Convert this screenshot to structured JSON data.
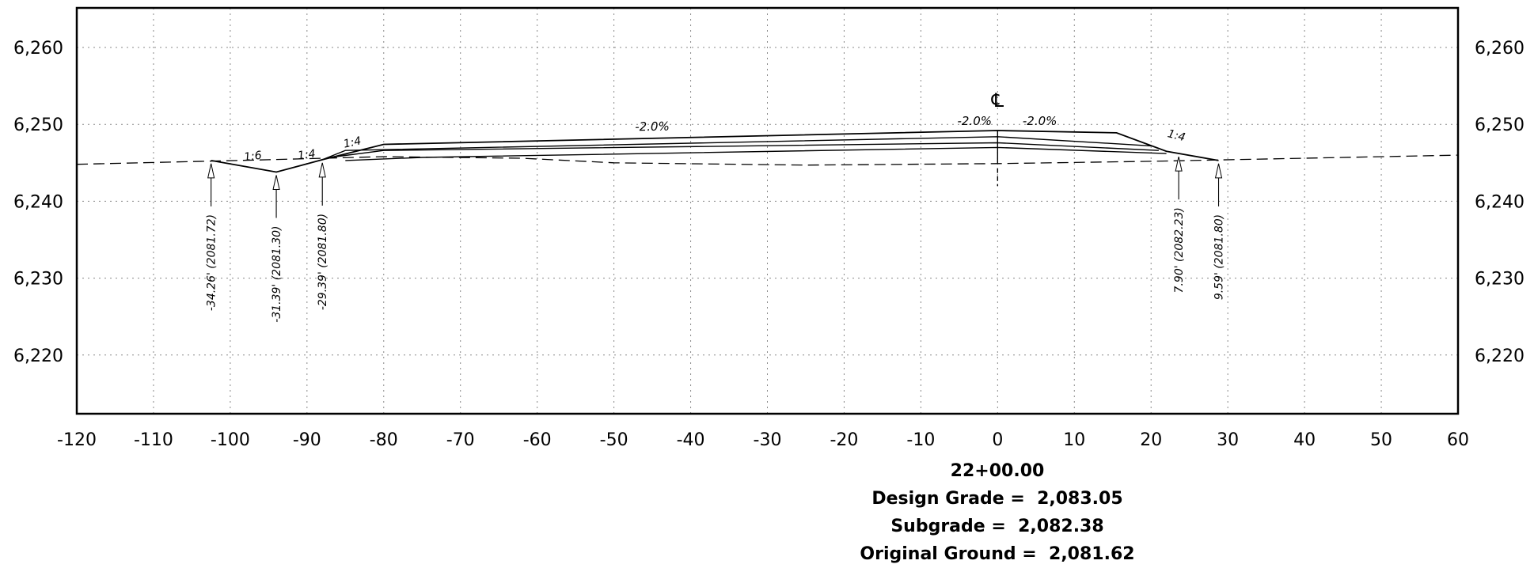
{
  "chart_data": {
    "type": "cross-section",
    "station": "22+00.00",
    "xlim": [
      -120,
      60
    ],
    "ylim": [
      6213,
      6266
    ],
    "x_ticks": [
      -120,
      -110,
      -100,
      -90,
      -80,
      -70,
      -60,
      -50,
      -40,
      -30,
      -20,
      -10,
      0,
      10,
      20,
      30,
      40,
      50,
      60
    ],
    "x_tick_labels": [
      "-120",
      "-110",
      "-100",
      "-90",
      "-80",
      "-70",
      "-60",
      "-50",
      "-40",
      "-30",
      "-20",
      "-10",
      "0",
      "10",
      "20",
      "30",
      "40",
      "50",
      "60"
    ],
    "y_ticks": [
      6220,
      6230,
      6240,
      6250,
      6260
    ],
    "y_tick_labels": [
      "6,220",
      "6,230",
      "6,240",
      "6,250",
      "6,260"
    ],
    "grid": true,
    "centerline_symbol": "℄",
    "original_ground": [
      [
        -120,
        6244.8
      ],
      [
        -95,
        6245.4
      ],
      [
        -80,
        6245.8
      ],
      [
        -62,
        6245.6
      ],
      [
        -50,
        6245.0
      ],
      [
        -25,
        6244.7
      ],
      [
        0,
        6244.9
      ],
      [
        20,
        6245.2
      ],
      [
        40,
        6245.6
      ],
      [
        60,
        6246.0
      ]
    ],
    "design_surface": [
      [
        -102.5,
        6245.3
      ],
      [
        -94,
        6243.8
      ],
      [
        -88,
        6245.4
      ],
      [
        -80,
        6247.4
      ],
      [
        0,
        6249.2
      ],
      [
        15.5,
        6248.9
      ],
      [
        22,
        6246.5
      ],
      [
        28.8,
        6245.3
      ]
    ],
    "subgrade_layers": [
      [
        [
          -88,
          6245.4
        ],
        [
          -85,
          6246.6
        ],
        [
          0,
          6248.4
        ],
        [
          20,
          6247.2
        ]
      ],
      [
        [
          -87,
          6245.7
        ],
        [
          -80,
          6246.6
        ],
        [
          0,
          6247.6
        ],
        [
          21,
          6246.6
        ]
      ],
      [
        [
          -85,
          6245.3
        ],
        [
          -75,
          6245.7
        ],
        [
          0,
          6247.0
        ],
        [
          22,
          6246.2
        ]
      ]
    ],
    "slope_labels": [
      "1:6",
      "1:4",
      "1:4",
      "1:4"
    ],
    "grade_labels": [
      "-2.0%",
      "-2.0%",
      "-2.0%"
    ],
    "catch_points": [
      {
        "x": -102.5,
        "y": 6245.3,
        "label": "-34.26' (2081.72)"
      },
      {
        "x": -94,
        "y": 6243.8,
        "label": "-31.39' (2081.30)"
      },
      {
        "x": -88,
        "y": 6245.4,
        "label": "-29.39' (2081.80)"
      },
      {
        "x": 23.6,
        "y": 6246.2,
        "label": "7.90' (2082.23)"
      },
      {
        "x": 28.8,
        "y": 6245.3,
        "label": "9.59' (2081.80)"
      }
    ]
  },
  "info": {
    "station": "22+00.00",
    "design_grade": "Design Grade =  2,083.05",
    "subgrade": "Subgrade =  2,082.38",
    "original_ground": "Original Ground =  2,081.62"
  }
}
